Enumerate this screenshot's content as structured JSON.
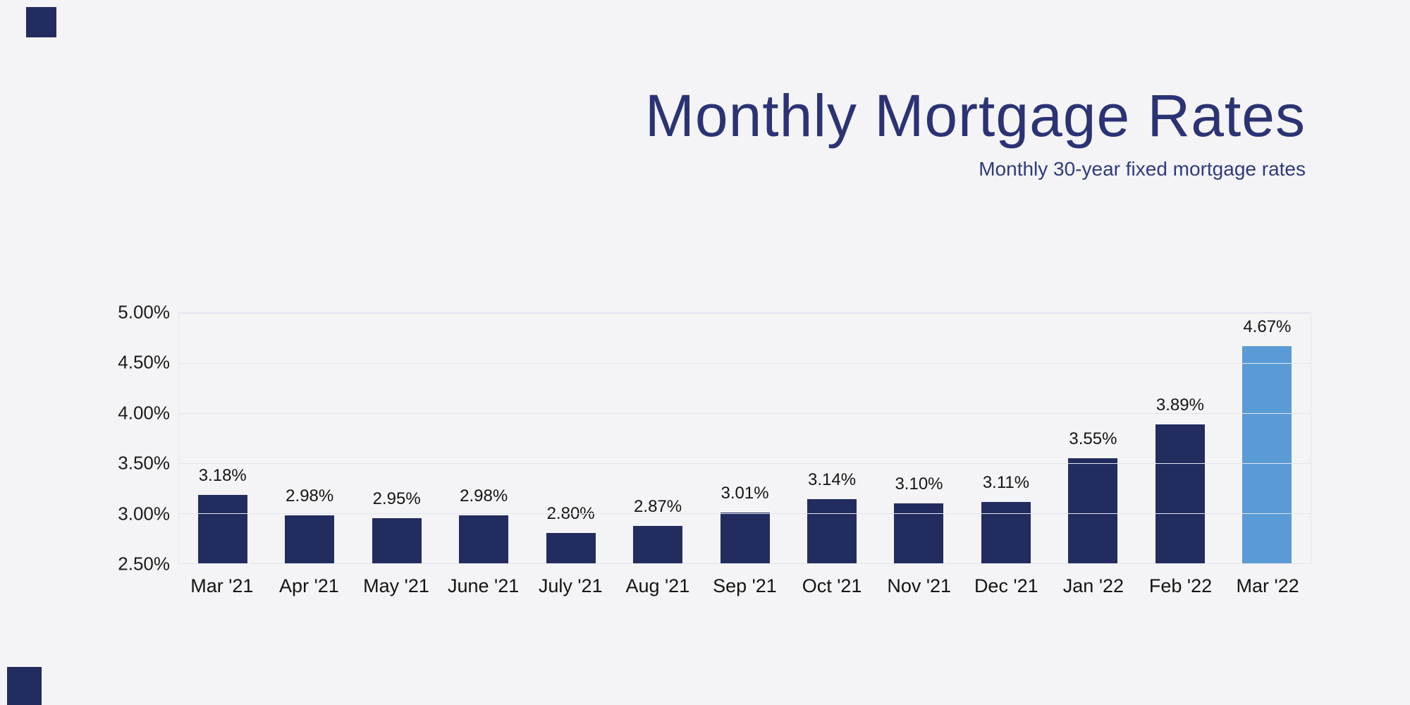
{
  "page": {
    "background_color": "#f4f4f6",
    "accent_color": "#232C5F"
  },
  "header": {
    "title": "Monthly Mortgage Rates",
    "subtitle": "Monthly 30-year fixed mortgage rates"
  },
  "chart_data": {
    "type": "bar",
    "title": "Monthly Mortgage Rates",
    "subtitle": "Monthly 30-year fixed mortgage rates",
    "categories": [
      "Mar '21",
      "Apr '21",
      "May '21",
      "June '21",
      "July '21",
      "Aug '21",
      "Sep '21",
      "Oct '21",
      "Nov '21",
      "Dec '21",
      "Jan '22",
      "Feb '22",
      "Mar '22"
    ],
    "values": [
      3.18,
      2.98,
      2.95,
      2.98,
      2.8,
      2.87,
      3.01,
      3.14,
      3.1,
      3.11,
      3.55,
      3.89,
      4.67
    ],
    "value_labels": [
      "3.18%",
      "2.98%",
      "2.95%",
      "2.98%",
      "2.80%",
      "2.87%",
      "3.01%",
      "3.14%",
      "3.10%",
      "3.11%",
      "3.55%",
      "3.89%",
      "4.67%"
    ],
    "xlabel": "",
    "ylabel": "",
    "ylim": [
      2.5,
      5.0
    ],
    "yticks": [
      "5.00%",
      "4.50%",
      "4.00%",
      "3.50%",
      "3.00%",
      "2.50%"
    ],
    "grid": true,
    "legend": "none",
    "bar_color": "#232C5F",
    "highlight_color": "#5B9BD5",
    "highlight_index": 12
  }
}
